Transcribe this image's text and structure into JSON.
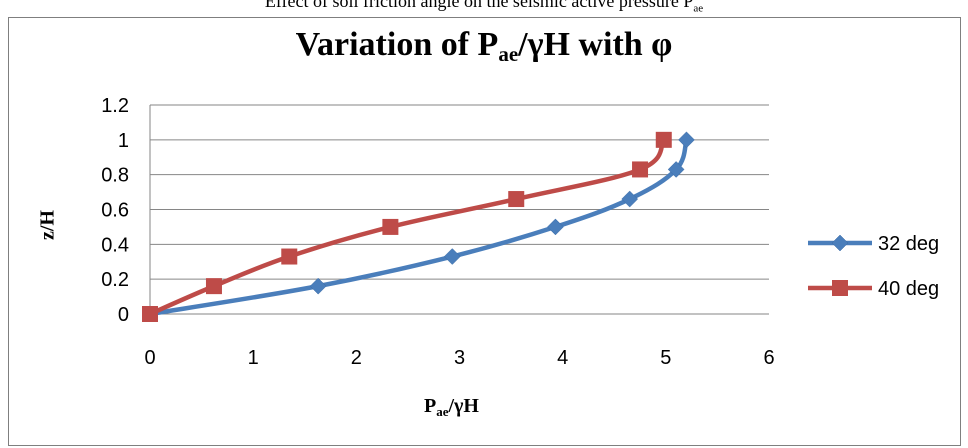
{
  "caption_prefix": "Effect of soil friction angle on the seismic active pressure P",
  "caption_sub": "ae",
  "chart_data": {
    "type": "line",
    "title": {
      "prefix": "Variation of P",
      "sub": "ae",
      "suffix": "/γH with φ"
    },
    "xlabel": {
      "prefix": "P",
      "sub": "ae",
      "suffix": "/γH"
    },
    "ylabel": "z/H",
    "xlim": [
      0,
      6
    ],
    "ylim": [
      0,
      1.2
    ],
    "xticks": [
      "0",
      "1",
      "2",
      "3",
      "4",
      "5",
      "6"
    ],
    "yticks": [
      "0",
      "0.2",
      "0.4",
      "0.6",
      "0.8",
      "1",
      "1.2"
    ],
    "grid": "horizontal",
    "legend_position": "right",
    "series": [
      {
        "name": "32  deg",
        "color": "#4a7ebb",
        "marker": "diamond",
        "points": [
          {
            "x": 0,
            "y": 0
          },
          {
            "x": 1.63,
            "y": 0.16
          },
          {
            "x": 2.93,
            "y": 0.33
          },
          {
            "x": 3.93,
            "y": 0.5
          },
          {
            "x": 4.65,
            "y": 0.66
          },
          {
            "x": 5.1,
            "y": 0.83
          },
          {
            "x": 5.2,
            "y": 1.0
          }
        ]
      },
      {
        "name": "40 deg",
        "color": "#be4b48",
        "marker": "square",
        "points": [
          {
            "x": 0,
            "y": 0
          },
          {
            "x": 0.62,
            "y": 0.16
          },
          {
            "x": 1.35,
            "y": 0.33
          },
          {
            "x": 2.33,
            "y": 0.5
          },
          {
            "x": 3.55,
            "y": 0.66
          },
          {
            "x": 4.75,
            "y": 0.83
          },
          {
            "x": 4.98,
            "y": 1.0
          }
        ]
      }
    ]
  }
}
